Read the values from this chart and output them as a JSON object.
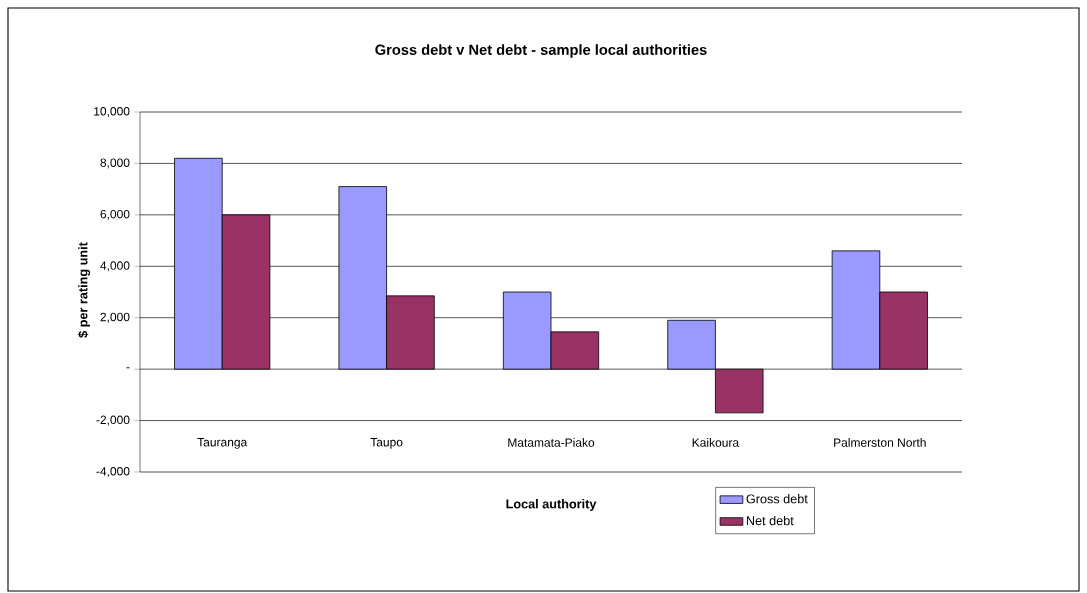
{
  "chart_data": {
    "type": "bar",
    "title": "Gross debt v Net debt - sample local authorities",
    "xlabel": "Local authority",
    "ylabel": "$ per rating unit",
    "categories": [
      "Tauranga",
      "Taupo",
      "Matamata-Piako",
      "Kaikoura",
      "Palmerston North"
    ],
    "series": [
      {
        "name": "Gross debt",
        "color": "#9999ff",
        "values": [
          8200,
          7100,
          3000,
          1900,
          4600
        ]
      },
      {
        "name": "Net debt",
        "color": "#993366",
        "values": [
          6000,
          2850,
          1450,
          -1700,
          3000
        ]
      }
    ],
    "ylim": [
      -4000,
      10000
    ],
    "yticks": [
      {
        "value": -4000,
        "label": "-4,000"
      },
      {
        "value": -2000,
        "label": "-2,000"
      },
      {
        "value": 0,
        "label": "-"
      },
      {
        "value": 2000,
        "label": "2,000"
      },
      {
        "value": 4000,
        "label": "4,000"
      },
      {
        "value": 6000,
        "label": "6,000"
      },
      {
        "value": 8000,
        "label": "8,000"
      },
      {
        "value": 10000,
        "label": "10,000"
      }
    ],
    "grid": "y",
    "legend": "bottom"
  }
}
